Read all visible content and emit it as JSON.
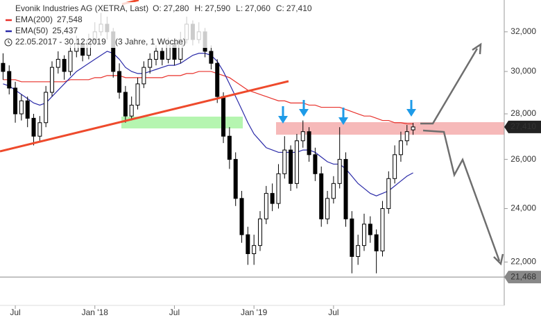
{
  "chart_data": {
    "type": "candlestick",
    "title": "Evonik Industries AG (XETRA, Last)",
    "quote": [
      {
        "name": "O:",
        "value": 27.28,
        "label": "27,280"
      },
      {
        "name": "H:",
        "value": 27.59,
        "label": "27,590"
      },
      {
        "name": "L:",
        "value": 27.06,
        "label": "27,060"
      },
      {
        "name": "C:",
        "value": 27.41,
        "label": "27,410"
      }
    ],
    "date_range": "22.05.2017 - 30.12.2019",
    "period": "(3 Jahre, 1 Woche)",
    "categories": [
      null,
      null,
      "Jul",
      null,
      null,
      null,
      null,
      null,
      null,
      null,
      null,
      null,
      null,
      null,
      null,
      "Jan '18",
      null,
      null,
      null,
      null,
      null,
      null,
      null,
      null,
      null,
      null,
      null,
      null,
      "Jul",
      null,
      null,
      null,
      null,
      null,
      null,
      null,
      null,
      null,
      null,
      null,
      null,
      "Jan '19",
      null,
      null,
      null,
      null,
      null,
      null,
      null,
      null,
      null,
      null,
      null,
      null,
      "Jul",
      null,
      null,
      null,
      null,
      null,
      null,
      null,
      null,
      null,
      null,
      null,
      null,
      null
    ],
    "ohlc": [
      [
        30.4,
        30.9,
        29.6,
        30.0
      ],
      [
        30.0,
        30.3,
        28.9,
        29.2
      ],
      [
        29.2,
        29.5,
        27.6,
        28.0
      ],
      [
        28.0,
        28.9,
        27.7,
        28.6
      ],
      [
        28.6,
        28.8,
        27.4,
        27.8
      ],
      [
        27.8,
        28.0,
        26.6,
        27.0
      ],
      [
        27.0,
        27.9,
        26.8,
        27.6
      ],
      [
        27.6,
        29.3,
        27.4,
        29.0
      ],
      [
        29.0,
        30.5,
        28.8,
        30.2
      ],
      [
        30.2,
        31.0,
        29.9,
        30.6
      ],
      [
        30.6,
        30.8,
        29.6,
        30.0
      ],
      [
        30.0,
        31.3,
        29.8,
        31.0
      ],
      [
        31.0,
        31.8,
        30.7,
        31.4
      ],
      [
        31.4,
        31.6,
        30.5,
        30.8
      ],
      [
        30.8,
        31.9,
        30.6,
        31.6
      ],
      [
        31.6,
        32.5,
        31.3,
        32.0
      ],
      [
        32.0,
        33.0,
        31.8,
        32.4
      ],
      [
        32.4,
        32.8,
        31.6,
        32.0
      ],
      [
        32.0,
        32.2,
        29.7,
        30.0
      ],
      [
        30.0,
        30.4,
        28.7,
        29.0
      ],
      [
        29.0,
        29.3,
        27.6,
        27.9
      ],
      [
        27.9,
        28.8,
        27.7,
        28.4
      ],
      [
        28.4,
        29.7,
        28.2,
        29.4
      ],
      [
        29.4,
        30.5,
        29.2,
        30.2
      ],
      [
        30.2,
        30.9,
        29.9,
        30.6
      ],
      [
        30.6,
        31.3,
        30.3,
        31.0
      ],
      [
        31.0,
        31.2,
        30.3,
        30.6
      ],
      [
        30.6,
        31.7,
        30.4,
        31.4
      ],
      [
        31.4,
        31.6,
        30.3,
        30.6
      ],
      [
        30.6,
        32.0,
        30.4,
        31.6
      ],
      [
        31.6,
        32.8,
        31.4,
        32.4
      ],
      [
        32.4,
        32.6,
        31.3,
        31.6
      ],
      [
        31.6,
        32.5,
        31.4,
        32.0
      ],
      [
        32.0,
        32.2,
        30.7,
        31.0
      ],
      [
        31.0,
        31.3,
        30.1,
        30.4
      ],
      [
        30.4,
        30.6,
        28.5,
        28.8
      ],
      [
        28.8,
        29.0,
        26.7,
        27.0
      ],
      [
        27.0,
        27.4,
        25.6,
        26.0
      ],
      [
        26.0,
        26.3,
        24.1,
        24.4
      ],
      [
        24.4,
        24.7,
        22.7,
        23.0
      ],
      [
        23.0,
        23.3,
        21.9,
        22.3
      ],
      [
        22.3,
        23.0,
        21.9,
        22.6
      ],
      [
        22.6,
        23.9,
        22.4,
        23.6
      ],
      [
        23.6,
        24.9,
        23.4,
        24.6
      ],
      [
        24.6,
        25.0,
        23.9,
        24.2
      ],
      [
        24.2,
        25.8,
        24.0,
        25.4
      ],
      [
        25.4,
        27.0,
        25.2,
        26.4
      ],
      [
        26.4,
        26.6,
        24.7,
        25.0
      ],
      [
        25.0,
        27.1,
        24.8,
        26.8
      ],
      [
        26.8,
        27.7,
        26.5,
        27.2
      ],
      [
        27.2,
        27.4,
        25.9,
        26.2
      ],
      [
        26.2,
        26.5,
        25.1,
        25.4
      ],
      [
        25.4,
        25.7,
        23.3,
        23.6
      ],
      [
        23.6,
        24.7,
        23.4,
        24.4
      ],
      [
        24.4,
        25.3,
        24.2,
        25.0
      ],
      [
        25.0,
        27.4,
        24.8,
        26.0
      ],
      [
        26.0,
        26.3,
        23.3,
        23.6
      ],
      [
        23.6,
        23.9,
        21.6,
        22.2
      ],
      [
        22.2,
        23.0,
        21.9,
        22.6
      ],
      [
        22.6,
        23.8,
        22.4,
        23.4
      ],
      [
        23.4,
        23.7,
        22.7,
        23.0
      ],
      [
        23.0,
        23.2,
        21.6,
        22.4
      ],
      [
        22.4,
        24.3,
        22.2,
        24.0
      ],
      [
        24.0,
        25.5,
        23.8,
        25.2
      ],
      [
        25.2,
        26.6,
        25.0,
        26.2
      ],
      [
        26.2,
        27.2,
        25.9,
        26.8
      ],
      [
        26.8,
        27.5,
        26.6,
        27.2
      ],
      [
        27.28,
        27.59,
        27.06,
        27.41
      ]
    ],
    "up_color": "#ffffff",
    "down_color": "#000000",
    "series": [
      {
        "name": "EMA(200)",
        "color": "#e8302a",
        "legend_value": {
          "value": 27.548,
          "label": "27,548"
        },
        "values": [
          29.6,
          29.6,
          29.6,
          29.5,
          29.5,
          29.5,
          29.5,
          29.5,
          29.5,
          29.5,
          29.5,
          29.6,
          29.6,
          29.6,
          29.6,
          29.7,
          29.7,
          29.8,
          29.8,
          29.8,
          29.7,
          29.7,
          29.7,
          29.7,
          29.7,
          29.7,
          29.7,
          29.8,
          29.8,
          29.8,
          29.9,
          29.9,
          30.0,
          30.0,
          30.0,
          29.9,
          29.8,
          29.7,
          29.5,
          29.3,
          29.1,
          29.0,
          28.9,
          28.8,
          28.7,
          28.6,
          28.6,
          28.5,
          28.5,
          28.5,
          28.4,
          28.4,
          28.3,
          28.3,
          28.3,
          28.3,
          28.2,
          28.1,
          28.0,
          27.9,
          27.9,
          27.8,
          27.7,
          27.7,
          27.6,
          27.6,
          27.55,
          27.548
        ]
      },
      {
        "name": "EMA(50)",
        "color": "#2a2aa8",
        "legend_value": {
          "value": 25.437,
          "label": "25,437"
        },
        "values": [
          29.4,
          29.3,
          29.1,
          28.9,
          28.7,
          28.5,
          28.4,
          28.5,
          28.8,
          29.1,
          29.4,
          29.7,
          30.0,
          30.2,
          30.4,
          30.6,
          30.8,
          31.0,
          30.9,
          30.6,
          30.2,
          30.0,
          29.9,
          29.9,
          30.0,
          30.1,
          30.2,
          30.3,
          30.3,
          30.4,
          30.6,
          30.8,
          30.9,
          30.9,
          30.8,
          30.5,
          30.0,
          29.4,
          28.8,
          28.2,
          27.6,
          27.1,
          26.8,
          26.5,
          26.4,
          26.3,
          26.3,
          26.3,
          26.3,
          26.4,
          26.4,
          26.3,
          26.1,
          25.9,
          25.8,
          25.8,
          25.6,
          25.3,
          25.0,
          24.8,
          24.6,
          24.5,
          24.6,
          24.7,
          24.9,
          25.1,
          25.3,
          25.437
        ]
      }
    ],
    "ylim": [
      20.5,
      33.7
    ],
    "log_y": true,
    "yticks": [
      {
        "value": 22,
        "label": "22,000"
      },
      {
        "value": 24,
        "label": "24,000"
      },
      {
        "value": 26,
        "label": "26,000"
      },
      {
        "value": 28,
        "label": "28,000"
      },
      {
        "value": 30,
        "label": "30,000"
      },
      {
        "value": 32,
        "label": "32,000"
      }
    ],
    "price_tags": [
      {
        "value": 27.41,
        "label": "27,410",
        "color": "#222222"
      },
      {
        "value": 21.468,
        "label": "21,468",
        "color": "#888888"
      }
    ]
  }
}
